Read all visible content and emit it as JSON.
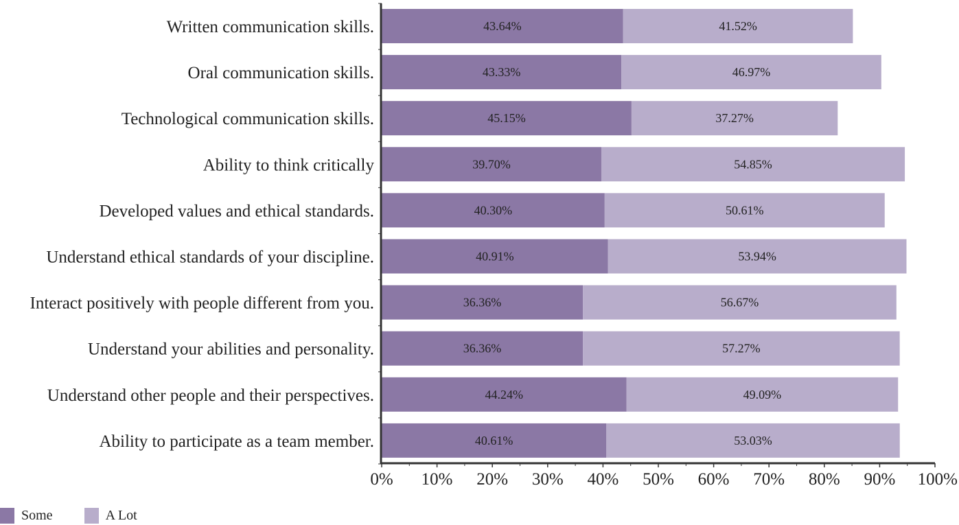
{
  "chart_data": {
    "type": "bar",
    "orientation": "horizontal",
    "stacked": true,
    "title": "",
    "xlabel": "",
    "ylabel": "",
    "xlim": [
      0,
      100
    ],
    "x_ticks": [
      "0%",
      "10%",
      "20%",
      "30%",
      "40%",
      "50%",
      "60%",
      "70%",
      "80%",
      "90%",
      "100%"
    ],
    "categories": [
      "Written communication skills.",
      "Oral communication skills.",
      "Technological communication skills.",
      "Ability to think critically",
      "Developed values and ethical standards.",
      "Understand ethical standards of your discipline.",
      "Interact positively with people different from you.",
      "Understand your abilities and personality.",
      "Understand other people and their perspectives.",
      "Ability to participate as a team member."
    ],
    "series": [
      {
        "name": "Some",
        "color": "#8b78a5",
        "values": [
          43.64,
          43.33,
          45.15,
          39.7,
          40.3,
          40.91,
          36.36,
          36.36,
          44.24,
          40.61
        ],
        "labels": [
          "43.64%",
          "43.33%",
          "45.15%",
          "39.70%",
          "40.30%",
          "40.91%",
          "36.36%",
          "36.36%",
          "44.24%",
          "40.61%"
        ]
      },
      {
        "name": "A Lot",
        "color": "#b8adcb",
        "values": [
          41.52,
          46.97,
          37.27,
          54.85,
          50.61,
          53.94,
          56.67,
          57.27,
          49.09,
          53.03
        ],
        "labels": [
          "41.52%",
          "46.97%",
          "37.27%",
          "54.85%",
          "50.61%",
          "53.94%",
          "56.67%",
          "57.27%",
          "49.09%",
          "53.03%"
        ]
      }
    ],
    "grid": false,
    "legend_position": "bottom-left"
  }
}
